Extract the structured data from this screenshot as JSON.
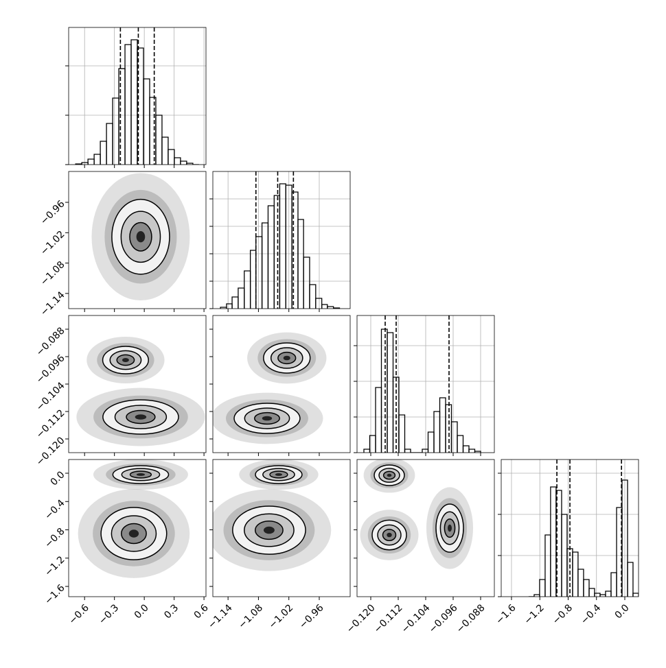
{
  "chart_data": {
    "type": "corner",
    "grid": true,
    "color": "#000000",
    "params": [
      {
        "xlim": [
          -0.76,
          0.62
        ],
        "ticks": [
          {
            "value": -0.6,
            "label": "−0.6"
          },
          {
            "value": -0.3,
            "label": "−0.3"
          },
          {
            "value": 0.0,
            "label": "0.0"
          },
          0.3,
          0.6
        ],
        "bins": [
          -0.69,
          -0.628,
          -0.566,
          -0.504,
          -0.442,
          -0.38,
          -0.318,
          -0.256,
          -0.194,
          -0.132,
          -0.07,
          -0.008,
          0.054,
          0.116,
          0.178,
          0.24,
          0.302,
          0.364,
          0.426,
          0.488,
          0.55
        ],
        "counts": [
          14,
          42,
          111,
          208,
          472,
          833,
          1347,
          1944,
          2431,
          2528,
          2361,
          1736,
          1361,
          1000,
          556,
          306,
          139,
          69,
          28,
          0
        ],
        "hist_ylim": [
          0,
          2778
        ],
        "hist_yticks": [
          0,
          1000,
          2000
        ],
        "quantiles": [
          -0.24,
          -0.06,
          0.1
        ]
      },
      {
        "xlim": [
          -1.17,
          -0.899
        ],
        "ticks": [
          {
            "value": -1.14,
            "label": "−1.14"
          },
          {
            "value": -1.08,
            "label": "−1.08"
          },
          {
            "value": -1.02,
            "label": "−1.02"
          },
          {
            "value": -0.96,
            "label": "−0.96"
          }
        ],
        "bins": [
          -1.155,
          -1.143,
          -1.132,
          -1.12,
          -1.108,
          -1.096,
          -1.085,
          -1.073,
          -1.061,
          -1.049,
          -1.038,
          -1.026,
          -1.014,
          -1.002,
          -0.991,
          -0.979,
          -0.967,
          -0.955,
          -0.944,
          -0.932,
          -0.92
        ],
        "counts": [
          50,
          175,
          425,
          750,
          1375,
          2125,
          2625,
          3125,
          3750,
          4125,
          4550,
          4500,
          4250,
          3250,
          1875,
          875,
          375,
          150,
          75,
          25
        ],
        "hist_ylim": [
          0,
          5000
        ],
        "hist_yticks": [
          0,
          1000,
          2000,
          3000,
          4000
        ],
        "quantiles": [
          -1.085,
          -1.042,
          -1.011
        ]
      },
      {
        "xlim": [
          -0.124,
          -0.084
        ],
        "ticks": [
          {
            "value": -0.12,
            "label": "−0.120"
          },
          {
            "value": -0.112,
            "label": "−0.112"
          },
          {
            "value": -0.104,
            "label": "−0.104"
          },
          {
            "value": -0.096,
            "label": "−0.096"
          },
          {
            "value": -0.088,
            "label": "−0.088"
          }
        ],
        "bins": [
          -0.122,
          -0.1203,
          -0.1186,
          -0.1169,
          -0.1152,
          -0.1135,
          -0.1118,
          -0.1101,
          -0.1084,
          -0.1067,
          -0.105,
          -0.1033,
          -0.1016,
          -0.0999,
          -0.0982,
          -0.0965,
          -0.0948,
          -0.0931,
          -0.0914,
          -0.0897,
          -0.088
        ],
        "counts": [
          96,
          481,
          1827,
          3462,
          3365,
          2115,
          1058,
          96,
          0,
          0,
          96,
          577,
          1154,
          1538,
          1346,
          865,
          481,
          192,
          96,
          38
        ],
        "hist_ylim": [
          0,
          3846
        ],
        "hist_yticks": [
          0,
          1000,
          2000,
          3000
        ],
        "quantiles": [
          -0.1158,
          -0.1126,
          -0.0972
        ]
      },
      {
        "xlim": [
          -1.745,
          0.194
        ],
        "ticks": [
          {
            "value": -1.6,
            "label": "−1.6"
          },
          {
            "value": -1.2,
            "label": "−1.2"
          },
          {
            "value": -0.8,
            "label": "−0.8"
          },
          {
            "value": -0.4,
            "label": "−0.4"
          },
          {
            "value": 0.0,
            "label": "0.0"
          }
        ],
        "bins": [
          -1.358,
          -1.28,
          -1.203,
          -1.125,
          -1.048,
          -0.97,
          -0.892,
          -0.815,
          -0.737,
          -0.66,
          -0.582,
          -0.504,
          -0.427,
          -0.349,
          -0.272,
          -0.194,
          -0.116,
          -0.039,
          0.039,
          0.116,
          0.194
        ],
        "counts": [
          0,
          50,
          417,
          1500,
          2667,
          2583,
          2000,
          1167,
          1083,
          667,
          417,
          200,
          83,
          50,
          133,
          583,
          2167,
          2833,
          833,
          83
        ],
        "hist_ylim": [
          0,
          3333
        ],
        "hist_yticks": [
          0,
          1000,
          2000,
          3000
        ],
        "quantiles": [
          -0.959,
          -0.775,
          -0.047
        ]
      }
    ],
    "panels": [
      {
        "clusters": [
          {
            "x": -0.036,
            "y": -1.028,
            "rx": 0.29,
            "ry": 0.074
          }
        ]
      },
      {
        "clusters": [
          {
            "x": -0.188,
            "y": -0.097,
            "rx": 0.23,
            "ry": 0.004
          },
          {
            "x": -0.036,
            "y": -0.1136,
            "rx": 0.38,
            "ry": 0.005
          }
        ]
      },
      {
        "clusters": [
          {
            "x": -1.024,
            "y": -0.0964,
            "rx": 0.046,
            "ry": 0.0044
          },
          {
            "x": -1.063,
            "y": -0.114,
            "rx": 0.065,
            "ry": 0.0044
          }
        ]
      },
      {
        "clusters": [
          {
            "x": -0.036,
            "y": -0.019,
            "rx": 0.28,
            "ry": 0.126
          },
          {
            "x": -0.105,
            "y": -0.853,
            "rx": 0.33,
            "ry": 0.37
          }
        ]
      },
      {
        "clusters": [
          {
            "x": -1.04,
            "y": -0.019,
            "rx": 0.046,
            "ry": 0.126
          },
          {
            "x": -1.059,
            "y": -0.805,
            "rx": 0.072,
            "ry": 0.34
          }
        ]
      },
      {
        "clusters": [
          {
            "x": -0.1146,
            "y": -0.029,
            "rx": 0.0044,
            "ry": 0.145
          },
          {
            "x": -0.1146,
            "y": -0.873,
            "rx": 0.005,
            "ry": 0.21
          },
          {
            "x": -0.097,
            "y": -0.776,
            "rx": 0.004,
            "ry": 0.34
          }
        ]
      }
    ]
  }
}
